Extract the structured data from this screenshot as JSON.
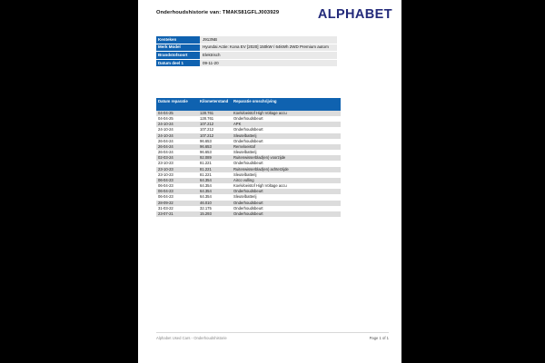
{
  "page": {
    "title": "Onderhoudshistorie van: TMAK581GFLJ003929",
    "logo": "ALPHABET"
  },
  "info_table": {
    "rows": [
      {
        "label": "Kenteken",
        "value": "J913NB"
      },
      {
        "label": "Merk Model",
        "value": "Hyundai Actie: Kona EV [2020] 150kW / 64kWh 2WD Premium autom"
      },
      {
        "label": "Brandstofsoort",
        "value": "Elektrisch"
      },
      {
        "label": "Datum deel 1",
        "value": "09-11-20"
      }
    ]
  },
  "history_table": {
    "headers": [
      "Datum reparatie",
      "Kilometerstand",
      "Reparatie omschrijving"
    ],
    "rows": [
      [
        "04-04-25",
        "128.761",
        "Koelvloeistof High Voltage accu"
      ],
      [
        "04-04-25",
        "128.761",
        "Onderhoudsbeurt"
      ],
      [
        "24-10-24",
        "107.212",
        "APK"
      ],
      [
        "24-10-24",
        "107.212",
        "Onderhoudsbeurt"
      ],
      [
        "24-10-24",
        "107.212",
        "Sleutelbatterij"
      ],
      [
        "26-04-24",
        "96.653",
        "Onderhoudsbeurt"
      ],
      [
        "26-04-24",
        "96.653",
        "Remvloeistof"
      ],
      [
        "26-04-24",
        "96.653",
        "Sleutelbatterij"
      ],
      [
        "02-03-24",
        "92.089",
        "Ruitenwisserblad(en) voorzijde"
      ],
      [
        "23-10-23",
        "81.221",
        "Onderhoudsbeurt"
      ],
      [
        "23-10-23",
        "81.221",
        "Ruitenwisserblad(en) achterzijde"
      ],
      [
        "23-10-23",
        "81.221",
        "Sleutelbatterij"
      ],
      [
        "06-04-23",
        "64.354",
        "Airco vulling"
      ],
      [
        "06-04-23",
        "64.354",
        "Koelvloeistof High Voltage accu"
      ],
      [
        "06-04-23",
        "64.354",
        "Onderhoudsbeurt"
      ],
      [
        "06-04-23",
        "64.354",
        "Sleutelbatterij"
      ],
      [
        "28-09-22",
        "46.010",
        "Onderhoudsbeurt"
      ],
      [
        "31-03-22",
        "32.175",
        "Onderhoudsbeurt"
      ],
      [
        "23-07-21",
        "15.293",
        "Onderhoudsbeurt"
      ]
    ]
  },
  "footer": {
    "left": "Alphabet  Used Cars - Onderhoudshistorie",
    "right": "Page 1 of 1"
  },
  "colors": {
    "accent_blue": "#0f62b0",
    "logo_navy": "#232a7a",
    "stripe_gray": "#dcdcdc"
  }
}
